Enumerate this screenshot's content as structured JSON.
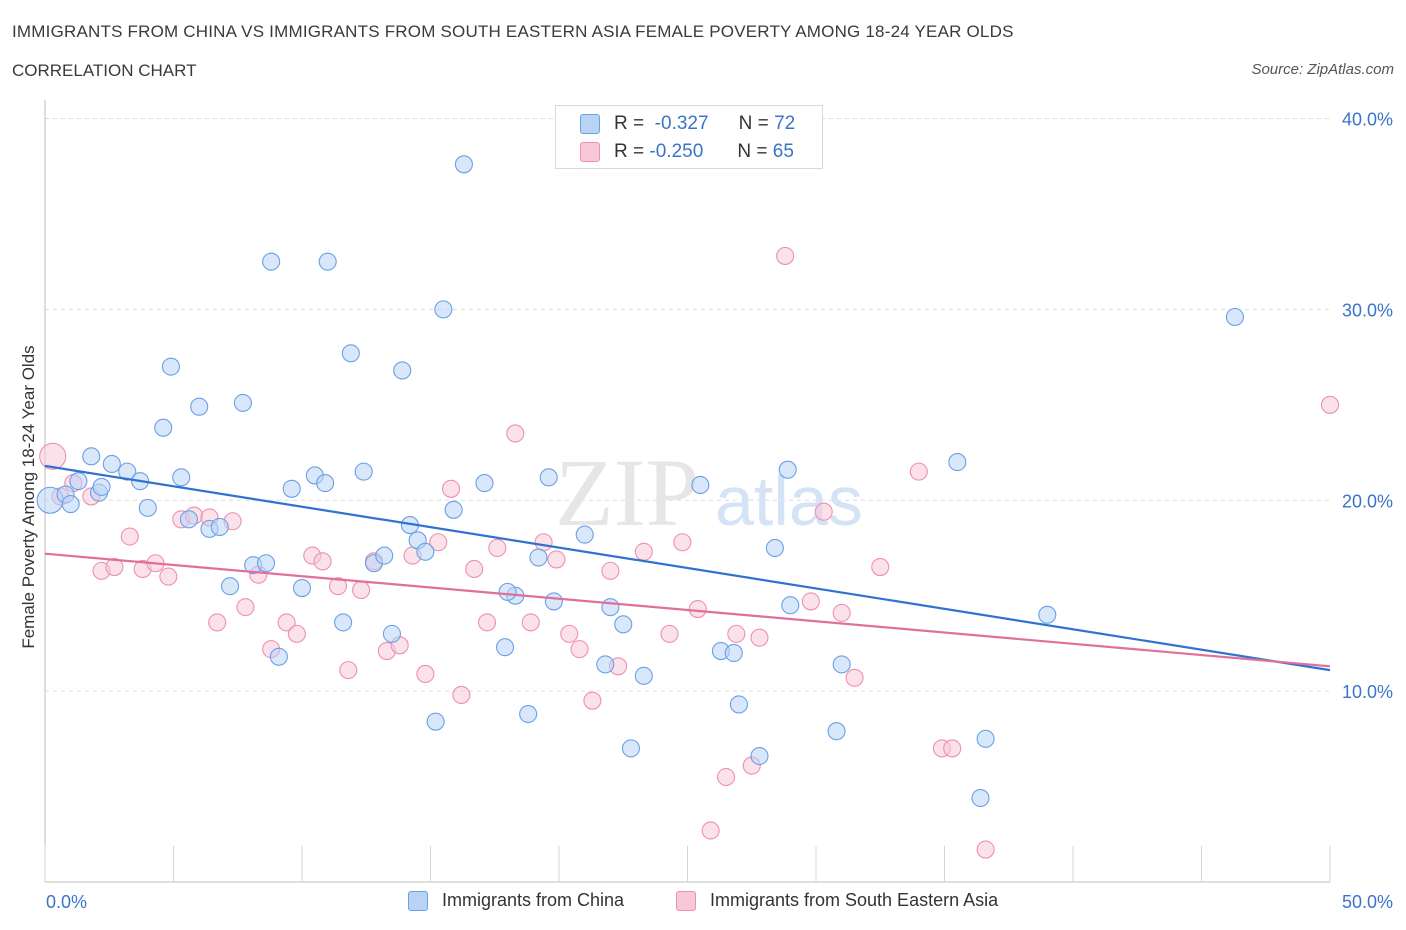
{
  "header": {
    "title": "IMMIGRANTS FROM CHINA VS IMMIGRANTS FROM SOUTH EASTERN ASIA FEMALE POVERTY AMONG 18-24 YEAR OLDS",
    "subtitle": "CORRELATION CHART",
    "source": "Source: ZipAtlas.com"
  },
  "legend": {
    "r_label": "R =",
    "n_label": "N =",
    "china_r": "-0.327",
    "china_n": "72",
    "sea_r": "-0.250",
    "sea_n": "65"
  },
  "bottom_legend": {
    "china": "Immigrants from China",
    "sea": "Immigrants from South Eastern Asia"
  },
  "chart_data": {
    "type": "scatter",
    "ylabel": "Female Poverty Among 18-24 Year Olds",
    "xlabel": "",
    "xlim": [
      0,
      50
    ],
    "ylim": [
      0,
      40
    ],
    "x_ticks": [
      "0.0%",
      "50.0%"
    ],
    "y_ticks": [
      "10.0%",
      "20.0%",
      "30.0%",
      "40.0%"
    ],
    "grid": true,
    "legend_position": "top-center",
    "watermark": "ZIPatlas",
    "colors": {
      "china": "#6aa0e6",
      "china_fill": "#b9d3f5",
      "china_line": "#2f72d0",
      "sea": "#ee90b0",
      "sea_fill": "#f8c8d8",
      "sea_line": "#e0709a",
      "axis_text": "#3a74c9"
    },
    "series": [
      {
        "name": "Immigrants from China",
        "trend": [
          [
            0,
            21.8
          ],
          [
            50,
            11.1
          ]
        ],
        "points": [
          [
            0.2,
            20.0
          ],
          [
            0.8,
            20.3
          ],
          [
            1.0,
            19.8
          ],
          [
            1.3,
            21.0
          ],
          [
            1.8,
            22.3
          ],
          [
            2.1,
            20.4
          ],
          [
            2.2,
            20.7
          ],
          [
            2.6,
            21.9
          ],
          [
            3.2,
            21.5
          ],
          [
            3.7,
            21.0
          ],
          [
            4.0,
            19.6
          ],
          [
            4.6,
            23.8
          ],
          [
            4.9,
            27.0
          ],
          [
            5.3,
            21.2
          ],
          [
            5.6,
            19.0
          ],
          [
            6.0,
            24.9
          ],
          [
            6.4,
            18.5
          ],
          [
            6.8,
            18.6
          ],
          [
            7.2,
            15.5
          ],
          [
            7.7,
            25.1
          ],
          [
            8.1,
            16.6
          ],
          [
            8.6,
            16.7
          ],
          [
            8.8,
            32.5
          ],
          [
            9.1,
            11.8
          ],
          [
            9.6,
            20.6
          ],
          [
            10.0,
            15.4
          ],
          [
            10.5,
            21.3
          ],
          [
            10.9,
            20.9
          ],
          [
            11.0,
            32.5
          ],
          [
            11.6,
            13.6
          ],
          [
            11.9,
            27.7
          ],
          [
            12.4,
            21.5
          ],
          [
            12.8,
            16.7
          ],
          [
            13.2,
            17.1
          ],
          [
            13.5,
            13.0
          ],
          [
            13.9,
            26.8
          ],
          [
            14.2,
            18.7
          ],
          [
            14.5,
            17.9
          ],
          [
            14.8,
            17.3
          ],
          [
            15.2,
            8.4
          ],
          [
            15.5,
            30.0
          ],
          [
            15.9,
            19.5
          ],
          [
            16.3,
            37.6
          ],
          [
            17.1,
            20.9
          ],
          [
            17.9,
            12.3
          ],
          [
            18.3,
            15.0
          ],
          [
            18.8,
            8.8
          ],
          [
            19.2,
            17.0
          ],
          [
            19.6,
            21.2
          ],
          [
            19.8,
            14.7
          ],
          [
            21.0,
            18.2
          ],
          [
            21.8,
            11.4
          ],
          [
            22.0,
            14.4
          ],
          [
            22.5,
            13.5
          ],
          [
            22.8,
            7.0
          ],
          [
            23.3,
            10.8
          ],
          [
            25.5,
            20.8
          ],
          [
            26.3,
            12.1
          ],
          [
            26.8,
            12.0
          ],
          [
            27.0,
            9.3
          ],
          [
            27.8,
            6.6
          ],
          [
            28.4,
            17.5
          ],
          [
            28.9,
            21.6
          ],
          [
            29.0,
            14.5
          ],
          [
            30.8,
            7.9
          ],
          [
            31.0,
            11.4
          ],
          [
            35.5,
            22.0
          ],
          [
            36.4,
            4.4
          ],
          [
            36.6,
            7.5
          ],
          [
            39.0,
            14.0
          ],
          [
            46.3,
            29.6
          ],
          [
            18.0,
            15.2
          ]
        ]
      },
      {
        "name": "Immigrants from South Eastern Asia",
        "trend": [
          [
            0,
            17.2
          ],
          [
            50,
            11.3
          ]
        ],
        "points": [
          [
            0.3,
            22.3
          ],
          [
            0.6,
            20.2
          ],
          [
            1.1,
            20.9
          ],
          [
            1.8,
            20.2
          ],
          [
            2.2,
            16.3
          ],
          [
            2.7,
            16.5
          ],
          [
            3.3,
            18.1
          ],
          [
            3.8,
            16.4
          ],
          [
            4.3,
            16.7
          ],
          [
            4.8,
            16.0
          ],
          [
            5.3,
            19.0
          ],
          [
            5.8,
            19.2
          ],
          [
            6.4,
            19.1
          ],
          [
            6.7,
            13.6
          ],
          [
            7.3,
            18.9
          ],
          [
            7.8,
            14.4
          ],
          [
            8.3,
            16.1
          ],
          [
            8.8,
            12.2
          ],
          [
            9.4,
            13.6
          ],
          [
            9.8,
            13.0
          ],
          [
            10.4,
            17.1
          ],
          [
            10.8,
            16.8
          ],
          [
            11.4,
            15.5
          ],
          [
            11.8,
            11.1
          ],
          [
            12.3,
            15.3
          ],
          [
            12.8,
            16.8
          ],
          [
            13.3,
            12.1
          ],
          [
            13.8,
            12.4
          ],
          [
            14.3,
            17.1
          ],
          [
            14.8,
            10.9
          ],
          [
            15.3,
            17.8
          ],
          [
            15.8,
            20.6
          ],
          [
            16.2,
            9.8
          ],
          [
            16.7,
            16.4
          ],
          [
            17.2,
            13.6
          ],
          [
            17.6,
            17.5
          ],
          [
            18.3,
            23.5
          ],
          [
            18.9,
            13.6
          ],
          [
            19.4,
            17.8
          ],
          [
            19.9,
            16.9
          ],
          [
            20.4,
            13.0
          ],
          [
            20.8,
            12.2
          ],
          [
            21.3,
            9.5
          ],
          [
            22.0,
            16.3
          ],
          [
            22.3,
            11.3
          ],
          [
            23.3,
            17.3
          ],
          [
            24.3,
            13.0
          ],
          [
            24.8,
            17.8
          ],
          [
            25.4,
            14.3
          ],
          [
            25.9,
            2.7
          ],
          [
            26.5,
            5.5
          ],
          [
            26.9,
            13.0
          ],
          [
            27.5,
            6.1
          ],
          [
            27.8,
            12.8
          ],
          [
            28.8,
            32.8
          ],
          [
            29.8,
            14.7
          ],
          [
            30.3,
            19.4
          ],
          [
            31.0,
            14.1
          ],
          [
            31.5,
            10.7
          ],
          [
            32.5,
            16.5
          ],
          [
            34.0,
            21.5
          ],
          [
            34.9,
            7.0
          ],
          [
            35.3,
            7.0
          ],
          [
            36.6,
            1.7
          ],
          [
            50.0,
            25.0
          ]
        ]
      }
    ]
  }
}
